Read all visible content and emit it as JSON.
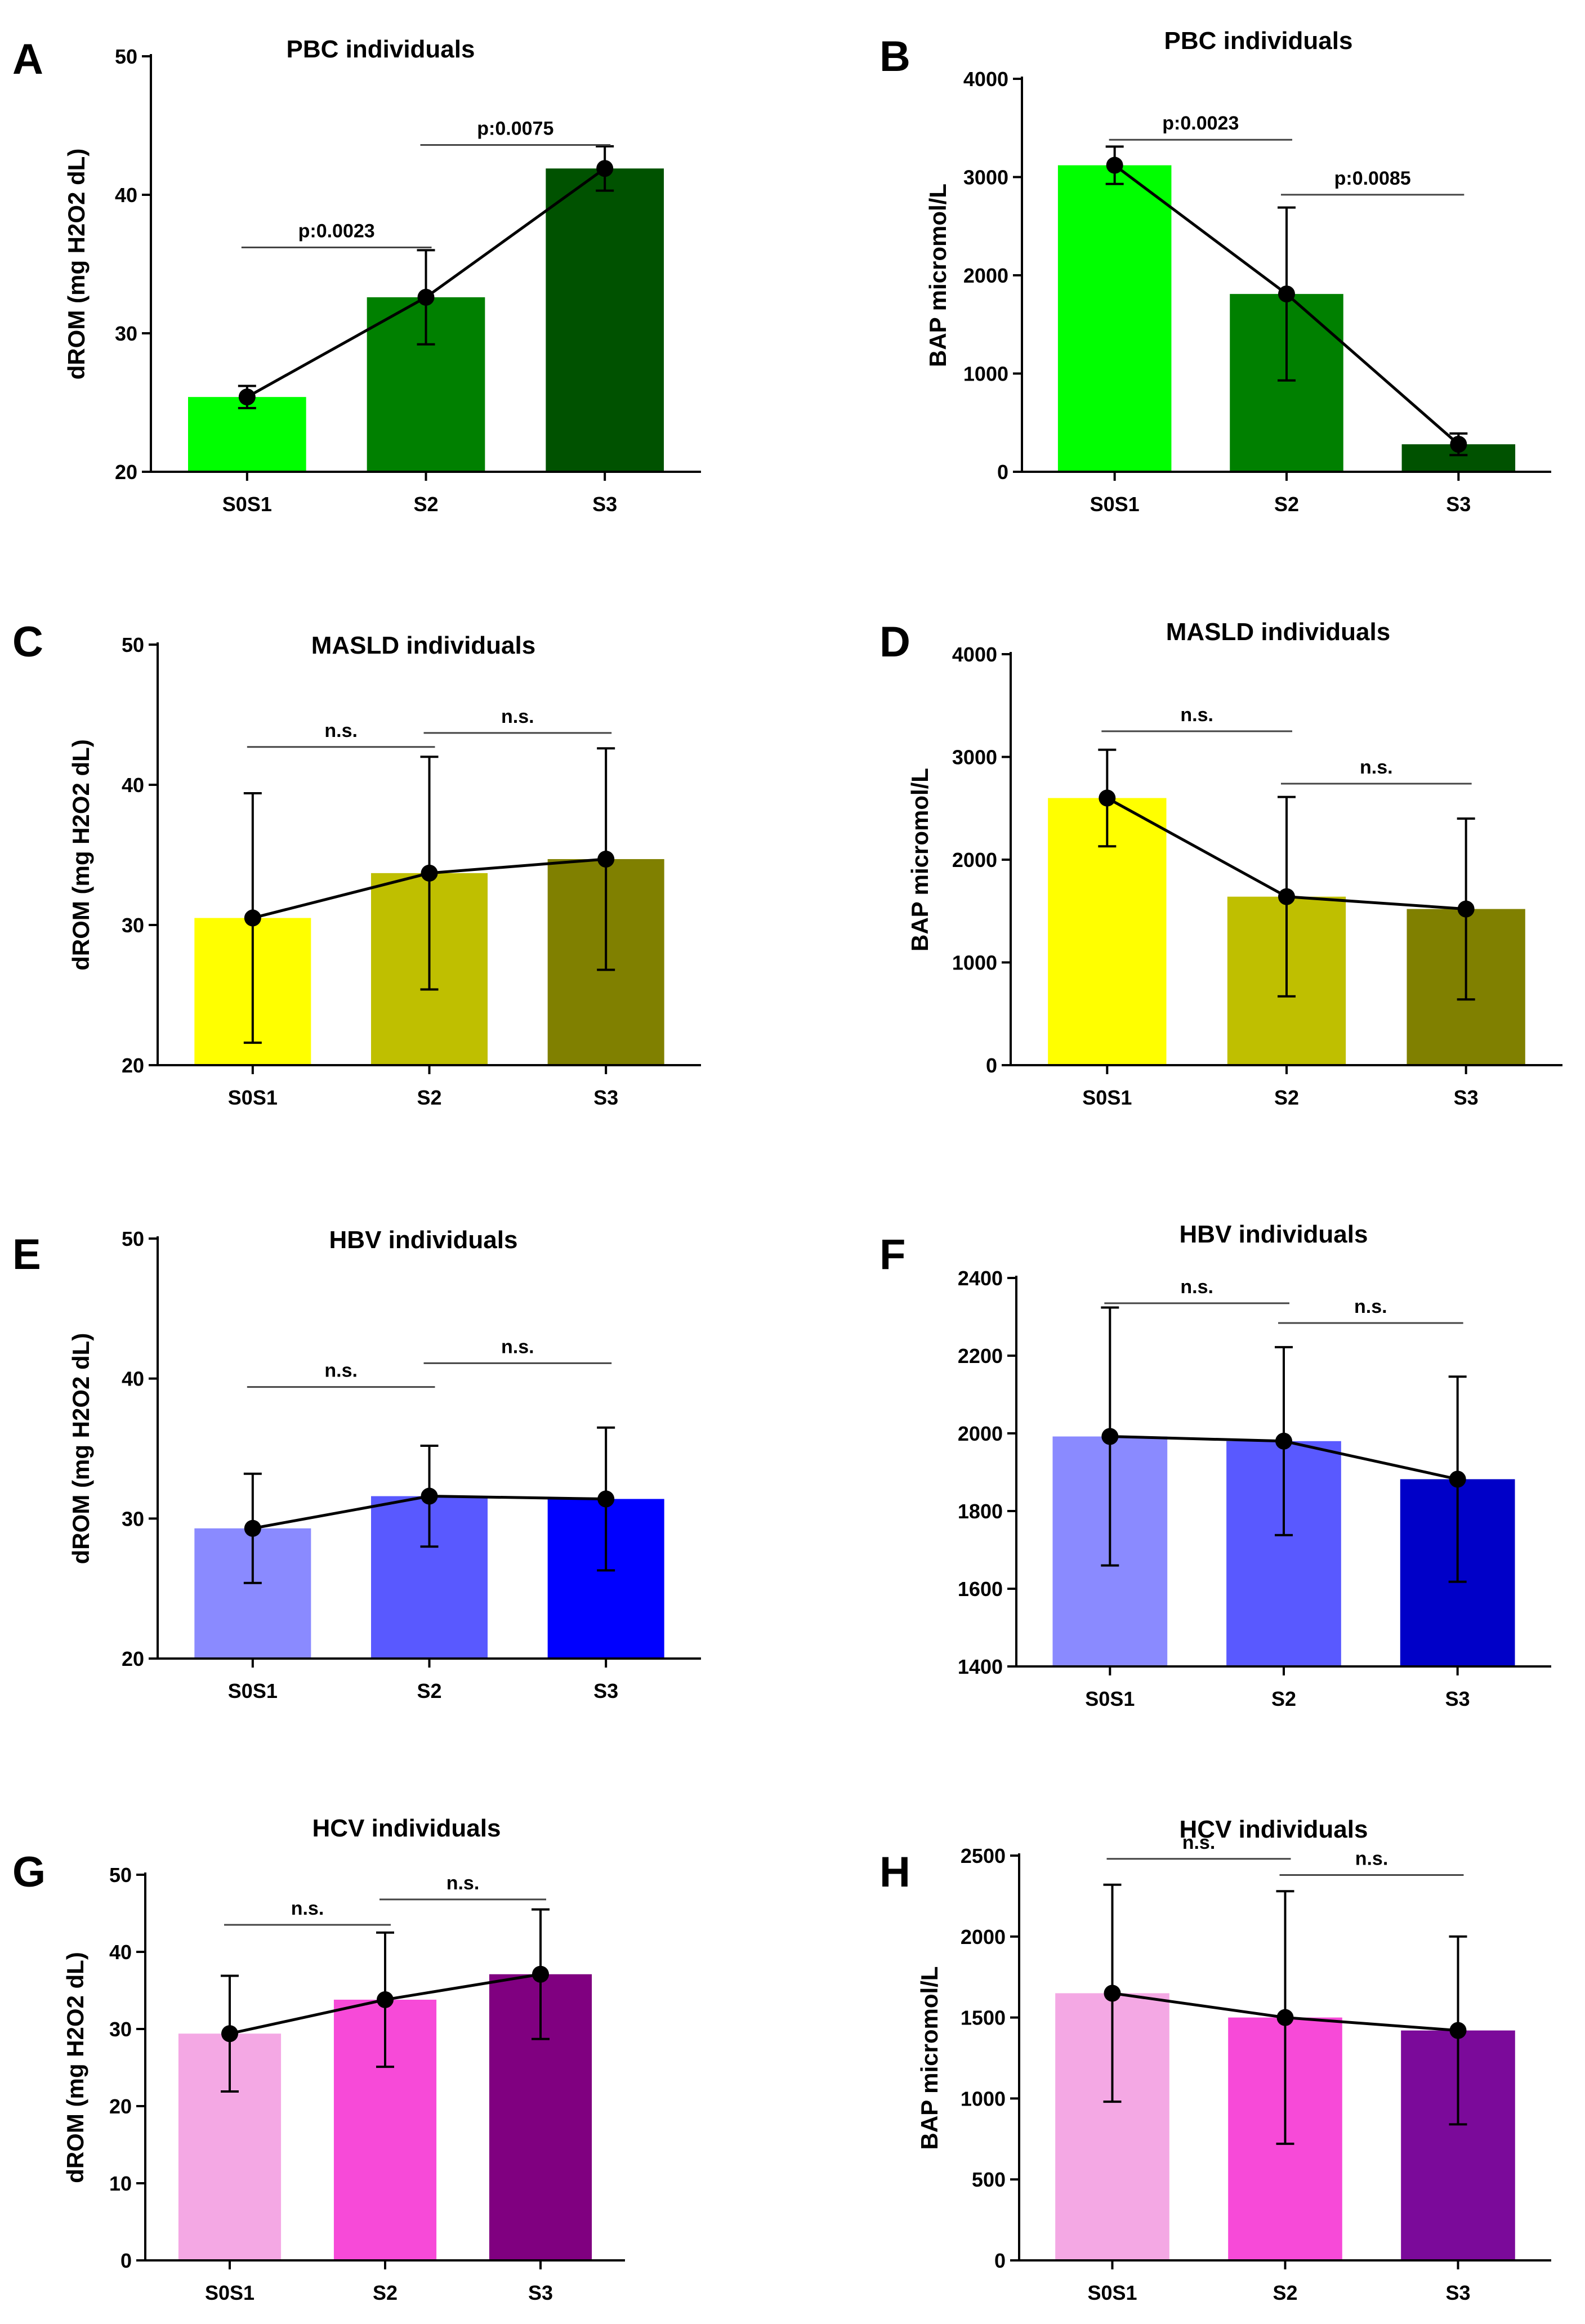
{
  "chart_data": [
    {
      "panel": "A",
      "type": "bar",
      "title": "PBC individuals",
      "ylabel": "dROM (mg H2O2 dL)",
      "xlabel": "",
      "categories": [
        "S0S1",
        "S2",
        "S3"
      ],
      "values": [
        25.4,
        32.6,
        41.9
      ],
      "errors": [
        0.8,
        3.4,
        1.6
      ],
      "colors": [
        "#00ff00",
        "#008000",
        "#005200"
      ],
      "ylim": [
        20,
        50
      ],
      "yticks": [
        20,
        30,
        40,
        50
      ],
      "ytick_labels": [
        "20",
        "30",
        "40",
        "50"
      ],
      "connect_means": true,
      "comparisons": [
        {
          "from": 0,
          "to": 1,
          "label": "p:0.0023",
          "y": 36.2
        },
        {
          "from": 1,
          "to": 2,
          "label": "p:0.0075",
          "y": 43.6
        }
      ]
    },
    {
      "panel": "B",
      "type": "bar",
      "title": "PBC individuals",
      "ylabel": "BAP micromol/L",
      "xlabel": "",
      "categories": [
        "S0S1",
        "S2",
        "S3"
      ],
      "values": [
        3120,
        1810,
        280
      ],
      "errors": [
        190,
        880,
        110
      ],
      "colors": [
        "#00ff00",
        "#008000",
        "#005200"
      ],
      "ylim": [
        0,
        4000
      ],
      "yticks": [
        0,
        1000,
        2000,
        3000,
        4000
      ],
      "ytick_labels": [
        "0",
        "1000",
        "2000",
        "3000",
        "4000"
      ],
      "connect_means": true,
      "comparisons": [
        {
          "from": 0,
          "to": 1,
          "label": "p:0.0023",
          "y": 3380
        },
        {
          "from": 1,
          "to": 2,
          "label": "p:0.0085",
          "y": 2820
        }
      ]
    },
    {
      "panel": "C",
      "type": "bar",
      "title": "MASLD  individuals",
      "ylabel": "dROM (mg H2O2 dL)",
      "xlabel": "",
      "categories": [
        "S0S1",
        "S2",
        "S3"
      ],
      "values": [
        30.5,
        33.7,
        34.7
      ],
      "errors": [
        8.9,
        8.3,
        7.9
      ],
      "colors": [
        "#ffff00",
        "#bfbf00",
        "#808000"
      ],
      "ylim": [
        20,
        50
      ],
      "yticks": [
        20,
        30,
        40,
        50
      ],
      "ytick_labels": [
        "20",
        "30",
        "40",
        "50"
      ],
      "connect_means": true,
      "comparisons": [
        {
          "from": 0,
          "to": 1,
          "label": "n.s.",
          "y": 42.7
        },
        {
          "from": 1,
          "to": 2,
          "label": "n.s.",
          "y": 43.7
        }
      ]
    },
    {
      "panel": "D",
      "type": "bar",
      "title": "MASLD individuals",
      "ylabel": "BAP micromol/L",
      "xlabel": "",
      "categories": [
        "S0S1",
        "S2",
        "S3"
      ],
      "values": [
        2600,
        1640,
        1520
      ],
      "errors": [
        470,
        970,
        880
      ],
      "colors": [
        "#ffff00",
        "#bfbf00",
        "#808000"
      ],
      "ylim": [
        0,
        4000
      ],
      "yticks": [
        0,
        1000,
        2000,
        3000,
        4000
      ],
      "ytick_labels": [
        "0",
        "1000",
        "2000",
        "3000",
        "4000"
      ],
      "connect_means": true,
      "comparisons": [
        {
          "from": 0,
          "to": 1,
          "label": "n.s.",
          "y": 3250
        },
        {
          "from": 1,
          "to": 2,
          "label": "n.s.",
          "y": 2740
        }
      ]
    },
    {
      "panel": "E",
      "type": "bar",
      "title": "HBV individuals",
      "ylabel": "dROM (mg H2O2 dL)",
      "xlabel": "",
      "categories": [
        "S0S1",
        "S2",
        "S3"
      ],
      "values": [
        29.3,
        31.6,
        31.4
      ],
      "errors": [
        3.9,
        3.6,
        5.1
      ],
      "colors": [
        "#8a8aff",
        "#5959ff",
        "#0000ff"
      ],
      "ylim": [
        20,
        50
      ],
      "yticks": [
        20,
        30,
        40,
        50
      ],
      "ytick_labels": [
        "20",
        "30",
        "40",
        "50"
      ],
      "connect_means": true,
      "comparisons": [
        {
          "from": 0,
          "to": 1,
          "label": "n.s.",
          "y": 39.4
        },
        {
          "from": 1,
          "to": 2,
          "label": "n.s.",
          "y": 41.1
        }
      ]
    },
    {
      "panel": "F",
      "type": "bar",
      "title": "HBV individuals",
      "ylabel": "",
      "xlabel": "",
      "categories": [
        "S0S1",
        "S2",
        "S3"
      ],
      "values": [
        1992,
        1980,
        1882
      ],
      "errors": [
        332,
        242,
        264
      ],
      "colors": [
        "#8a8aff",
        "#5959ff",
        "#0000c8"
      ],
      "ylim": [
        1400,
        2400
      ],
      "yticks": [
        1400,
        1600,
        1800,
        2000,
        2200,
        2400
      ],
      "ytick_labels": [
        "1400",
        "1600",
        "1800",
        "2000",
        "2200",
        "2400"
      ],
      "connect_means": true,
      "comparisons": [
        {
          "from": 0,
          "to": 1,
          "label": "n.s.",
          "y": 2335
        },
        {
          "from": 1,
          "to": 2,
          "label": "n.s.",
          "y": 2284
        }
      ]
    },
    {
      "panel": "G",
      "type": "bar",
      "title": "HCV individuals",
      "ylabel": "dROM (mg H2O2 dL)",
      "xlabel": "",
      "categories": [
        "S0S1",
        "S2",
        "S3"
      ],
      "values": [
        29.4,
        33.8,
        37.1
      ],
      "errors": [
        7.5,
        8.7,
        8.4
      ],
      "colors": [
        "#f4a8e4",
        "#f74ad8",
        "#800080"
      ],
      "ylim": [
        0,
        50
      ],
      "yticks": [
        0,
        10,
        20,
        30,
        40,
        50
      ],
      "ytick_labels": [
        "0",
        "10",
        "20",
        "30",
        "40",
        "50"
      ],
      "connect_means": true,
      "comparisons": [
        {
          "from": 0,
          "to": 1,
          "label": "n.s.",
          "y": 43.5
        },
        {
          "from": 1,
          "to": 2,
          "label": "n.s.",
          "y": 46.8
        }
      ]
    },
    {
      "panel": "H",
      "type": "bar",
      "title": "HCV individuals",
      "ylabel": "BAP micromol/L",
      "xlabel": "",
      "categories": [
        "S0S1",
        "S2",
        "S3"
      ],
      "values": [
        1650,
        1500,
        1420
      ],
      "errors": [
        670,
        780,
        580
      ],
      "colors": [
        "#f4a8e4",
        "#f74ad8",
        "#7b0a9a"
      ],
      "ylim": [
        0,
        2500
      ],
      "yticks": [
        0,
        500,
        1000,
        1500,
        2000,
        2500
      ],
      "ytick_labels": [
        "0",
        "500",
        "1000",
        "1500",
        "2000",
        "2500"
      ],
      "connect_means": true,
      "comparisons": [
        {
          "from": 0,
          "to": 1,
          "label": "n.s.",
          "y": 2480
        },
        {
          "from": 1,
          "to": 2,
          "label": "n.s.",
          "y": 2380
        }
      ]
    }
  ]
}
